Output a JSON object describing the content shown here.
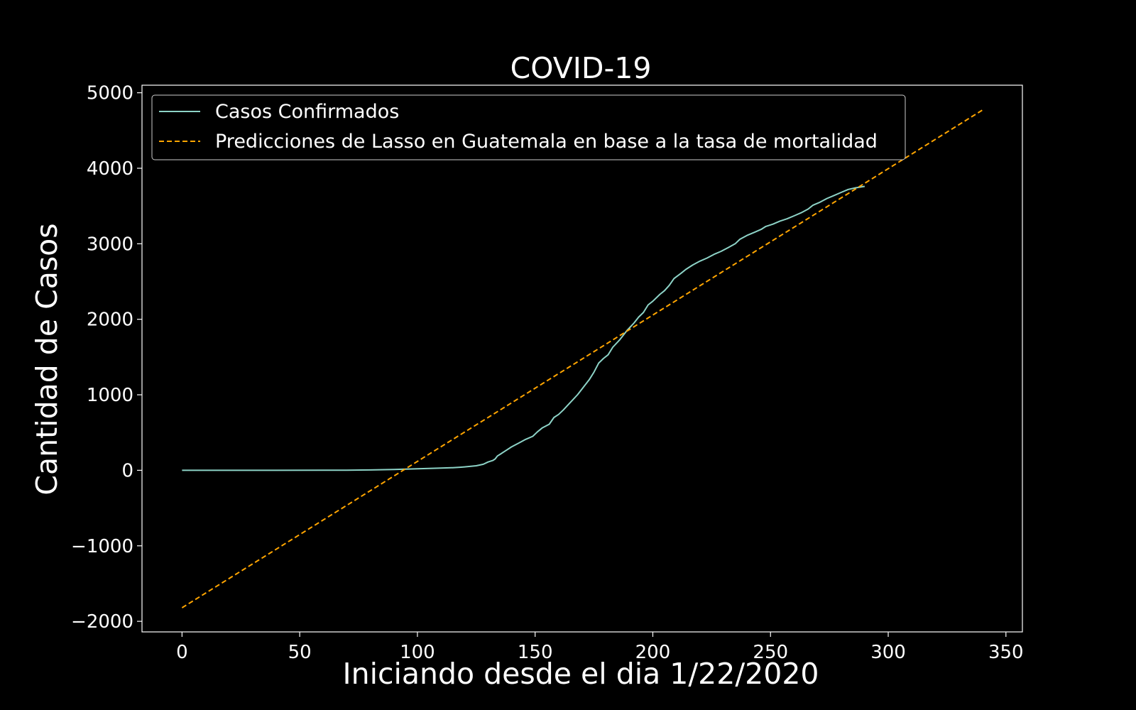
{
  "chart_data": {
    "type": "line",
    "title": "COVID-19",
    "xlabel": "Iniciando desde el dia 1/22/2020",
    "ylabel": "Cantidad de Casos",
    "xlim": [
      -17,
      357
    ],
    "ylim": [
      -2140,
      5100
    ],
    "xticks": [
      0,
      50,
      100,
      150,
      200,
      250,
      300,
      350
    ],
    "yticks": [
      -2000,
      -1000,
      0,
      1000,
      2000,
      3000,
      4000,
      5000
    ],
    "xtick_labels": [
      "0",
      "50",
      "100",
      "150",
      "200",
      "250",
      "300",
      "350"
    ],
    "ytick_labels": [
      "−2000",
      "−1000",
      "0",
      "1000",
      "2000",
      "3000",
      "4000",
      "5000"
    ],
    "grid": false,
    "legend_position": "upper-left",
    "colors": {
      "background": "#000000",
      "foreground": "#ffffff",
      "confirmed": "#8dd3c7",
      "prediction": "#ffa500"
    },
    "series": [
      {
        "name": "Casos Confirmados",
        "style": "solid",
        "color": "#8dd3c7",
        "x": [
          0,
          20,
          40,
          60,
          70,
          80,
          90,
          95,
          100,
          105,
          110,
          115,
          118,
          120,
          125,
          128,
          130,
          132,
          133,
          134,
          135,
          137,
          140,
          143,
          146,
          149,
          151,
          153,
          156,
          158,
          160,
          162,
          165,
          168,
          170,
          173,
          175,
          177,
          179,
          181,
          183,
          186,
          189,
          192,
          194,
          196,
          198,
          200,
          203,
          205,
          207,
          209,
          212,
          214,
          217,
          220,
          223,
          226,
          229,
          232,
          235,
          237,
          240,
          243,
          246,
          248,
          251,
          254,
          257,
          260,
          263,
          266,
          268,
          271,
          274,
          277,
          280,
          283,
          286,
          290
        ],
        "y": [
          0,
          0,
          0,
          1,
          2,
          5,
          10,
          15,
          20,
          25,
          30,
          35,
          40,
          45,
          60,
          80,
          110,
          130,
          150,
          190,
          210,
          250,
          310,
          360,
          410,
          450,
          510,
          560,
          610,
          700,
          740,
          800,
          900,
          1000,
          1080,
          1200,
          1300,
          1420,
          1480,
          1530,
          1630,
          1730,
          1850,
          1950,
          2030,
          2090,
          2190,
          2240,
          2330,
          2380,
          2450,
          2540,
          2610,
          2660,
          2720,
          2770,
          2810,
          2860,
          2900,
          2950,
          3000,
          3060,
          3110,
          3150,
          3190,
          3230,
          3260,
          3300,
          3330,
          3370,
          3410,
          3460,
          3510,
          3550,
          3600,
          3640,
          3680,
          3720,
          3740,
          3760
        ]
      },
      {
        "name": "Predicciones de Lasso en Guatemala en base a la tasa de mortalidad",
        "style": "dashed",
        "color": "#ffa500",
        "x": [
          0,
          340
        ],
        "y": [
          -1820,
          4770
        ]
      }
    ]
  }
}
